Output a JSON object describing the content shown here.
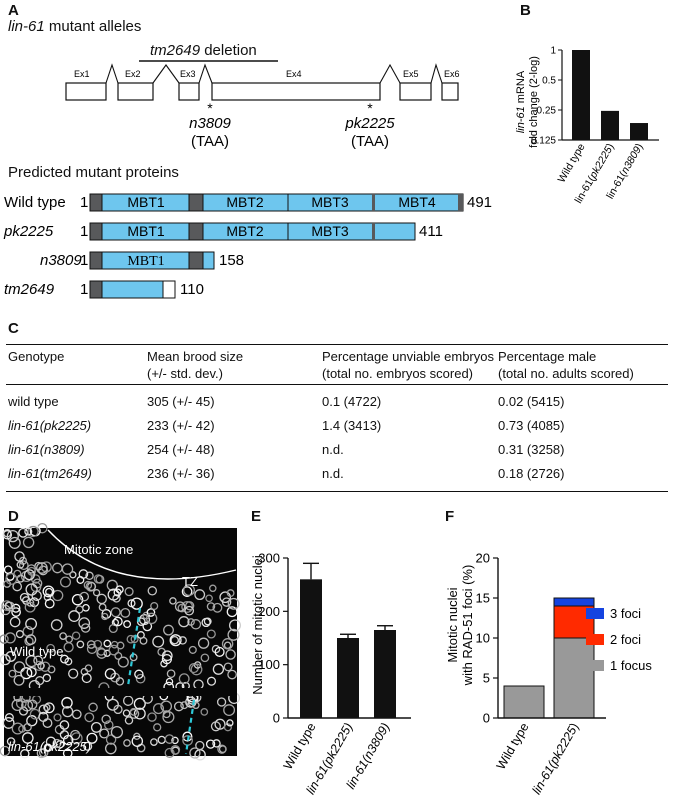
{
  "panels": {
    "a": "A",
    "b": "B",
    "c": "C",
    "d": "D",
    "e": "E",
    "f": "F"
  },
  "panel_a": {
    "title_gene": "lin-61",
    "title_rest": " mutant alleles",
    "deletion_label_gene": "tm2649",
    "deletion_label_rest": " deletion",
    "exons": [
      "Ex1",
      "Ex2",
      "Ex3",
      "Ex4",
      "Ex5",
      "Ex6"
    ],
    "alleles": [
      {
        "star": "*",
        "name": "n3809",
        "stop": "(TAA)"
      },
      {
        "star": "*",
        "name": "pk2225",
        "stop": "(TAA)"
      }
    ],
    "proteins_title": "Predicted mutant proteins",
    "proteins": [
      {
        "name": "Wild type",
        "italic": false,
        "start": "1",
        "end": "491",
        "domains": [
          "MBT1",
          "MBT2",
          "MBT3",
          "MBT4"
        ]
      },
      {
        "name": "pk2225",
        "italic": true,
        "start": "1",
        "end": "411",
        "domains": [
          "MBT1",
          "MBT2",
          "MBT3"
        ]
      },
      {
        "name": "n3809",
        "italic": true,
        "start": "1",
        "end": "158",
        "domains": [
          "MBT1"
        ]
      },
      {
        "name": "tm2649",
        "italic": true,
        "start": "1",
        "end": "110",
        "domains": []
      }
    ],
    "colors": {
      "domain": "#6ec6ee",
      "linker": "#58595b",
      "outline": "#111111"
    }
  },
  "panel_b": {
    "ylabel_gene": "lin-61",
    "ylabel_rest": " mRNA",
    "ylabel_line2": "fold change (2-log)",
    "ticks": [
      "1",
      "0.5",
      "0.25",
      "0.125"
    ],
    "categories": [
      "Wild type",
      "lin-61(pk2225)",
      "lin-61(n3809)"
    ]
  },
  "panel_c": {
    "headers": [
      [
        "",
        "Genotype"
      ],
      [
        "Mean brood size",
        "(+/- std. dev.)"
      ],
      [
        "Percentage unviable embryos",
        "(total no. embryos scored)"
      ],
      [
        "Percentage male",
        "(total no. adults scored)"
      ]
    ],
    "rows": [
      {
        "genotype": "wild type",
        "italic": false,
        "brood": "305 (+/- 45)",
        "unviable": "0.1 (4722)",
        "male": "0.02 (5415)"
      },
      {
        "genotype": "lin-61(pk2225)",
        "italic": true,
        "brood": "233 (+/- 42)",
        "unviable": "1.4 (3413)",
        "male": "0.73 (4085)"
      },
      {
        "genotype": "lin-61(n3809)",
        "italic": true,
        "brood": "254 (+/- 48)",
        "unviable": "n.d.",
        "male": "0.31 (3258)"
      },
      {
        "genotype": "lin-61(tm2649)",
        "italic": true,
        "brood": "236 (+/- 36)",
        "unviable": "n.d.",
        "male": "0.18 (2726)"
      }
    ]
  },
  "panel_d": {
    "mitotic_zone": "Mitotic zone",
    "tz": "TZ",
    "wild_type": "Wild type",
    "mutant": "lin-61(pk2225)",
    "colors": {
      "boundary": "#2ec9d8",
      "background": "#070707"
    }
  },
  "chart_data": [
    {
      "type": "bar",
      "panel": "B",
      "categories": [
        "Wild type",
        "lin-61(pk2225)",
        "lin-61(n3809)"
      ],
      "values": [
        1.0,
        0.245,
        0.185
      ],
      "ylabel": "lin-61 mRNA fold change (2-log)",
      "yscale": "log2",
      "ylim": [
        0.125,
        1
      ],
      "yticks": [
        1,
        0.5,
        0.25,
        0.125
      ]
    },
    {
      "type": "bar",
      "panel": "E",
      "categories": [
        "Wild type",
        "lin-61(pk2225)",
        "lin-61(n3809)"
      ],
      "values": [
        260,
        150,
        165
      ],
      "errors": [
        30,
        7,
        8
      ],
      "ylabel": "Number of mitotic nuclei",
      "ylim": [
        0,
        300
      ],
      "yticks": [
        0,
        100,
        200,
        300
      ]
    },
    {
      "type": "bar",
      "stacked": true,
      "panel": "F",
      "categories": [
        "Wild type",
        "lin-61(pk2225)"
      ],
      "series": [
        {
          "name": "1 focus",
          "values": [
            4,
            10
          ],
          "color": "#999999"
        },
        {
          "name": "2 foci",
          "values": [
            0,
            4
          ],
          "color": "#ff2a00"
        },
        {
          "name": "3 foci",
          "values": [
            0,
            1
          ],
          "color": "#1544e0"
        }
      ],
      "ylabel": "Mitotic nuclei with RAD-51 foci (%)",
      "ylim": [
        0,
        20
      ],
      "yticks": [
        0,
        5,
        10,
        15,
        20
      ],
      "legend": "right"
    }
  ],
  "panel_e_ylabel": "Number of mitotic nuclei",
  "panel_f_ylabel": [
    "Mitotic nuclei",
    "with RAD-51 foci (%)"
  ],
  "panel_f_legend": [
    "3 foci",
    "2 foci",
    "1 focus"
  ]
}
